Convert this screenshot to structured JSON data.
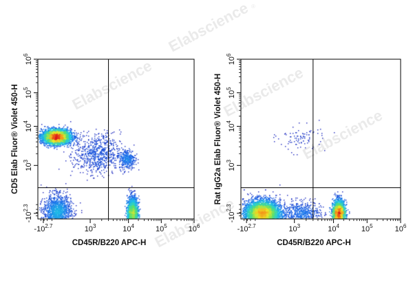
{
  "watermark": {
    "text": "Elabscience",
    "mark": "®"
  },
  "chart_data": [
    {
      "type": "scatter",
      "plot_style": "flow-cytometry pseudocolor density dot plot",
      "xlabel": "CD45R/B220 APC-H",
      "ylabel": "CD5 Elab Fluor® Violet 450-H",
      "x_scale": "biexponential",
      "y_scale": "biexponential",
      "xlim": [
        -501,
        1000000
      ],
      "ylim": [
        -200,
        1000000
      ],
      "x_ticks": [
        {
          "value": -501,
          "base": "-10",
          "exp": "2.7"
        },
        {
          "value": 1000,
          "base": "10",
          "exp": "3"
        },
        {
          "value": 10000,
          "base": "10",
          "exp": "4"
        },
        {
          "value": 100000,
          "base": "10",
          "exp": "5"
        },
        {
          "value": 1000000,
          "base": "10",
          "exp": "6"
        }
      ],
      "y_ticks": [
        {
          "value": -200,
          "base": "-10",
          "exp": "2.3"
        },
        {
          "value": 1000,
          "base": "10",
          "exp": "3"
        },
        {
          "value": 10000,
          "base": "10",
          "exp": "4"
        },
        {
          "value": 100000,
          "base": "10",
          "exp": "5"
        },
        {
          "value": 1000000,
          "base": "10",
          "exp": "6"
        }
      ],
      "quadrant_gate": {
        "x": 3000,
        "y": 550
      },
      "populations": [
        {
          "x": 200,
          "y": 5500,
          "spread_x": 0.45,
          "spread_y": 0.32,
          "weight": 0.46,
          "peak": "red"
        },
        {
          "x": 13000,
          "y": 30,
          "spread_x": 0.16,
          "spread_y": 0.75,
          "weight": 0.24,
          "peak": "red"
        },
        {
          "x": 220,
          "y": 40,
          "spread_x": 0.42,
          "spread_y": 0.8,
          "weight": 0.18,
          "peak": "cyan"
        },
        {
          "x": 1500,
          "y": 2000,
          "spread_x": 0.7,
          "spread_y": 0.9,
          "weight": 0.08,
          "peak": "blue"
        },
        {
          "x": 9000,
          "y": 1500,
          "spread_x": 0.25,
          "spread_y": 0.45,
          "weight": 0.04,
          "peak": "blue"
        }
      ]
    },
    {
      "type": "scatter",
      "plot_style": "flow-cytometry pseudocolor density dot plot",
      "xlabel": "CD45R/B220 APC-H",
      "ylabel": "Rat IgG2a Elab Fluor® Violet 450-H",
      "x_scale": "biexponential",
      "y_scale": "biexponential",
      "xlim": [
        -501,
        1000000
      ],
      "ylim": [
        -200,
        1000000
      ],
      "x_ticks": [
        {
          "value": -501,
          "base": "-10",
          "exp": "2.7"
        },
        {
          "value": 1000,
          "base": "10",
          "exp": "3"
        },
        {
          "value": 10000,
          "base": "10",
          "exp": "4"
        },
        {
          "value": 100000,
          "base": "10",
          "exp": "5"
        },
        {
          "value": 1000000,
          "base": "10",
          "exp": "6"
        }
      ],
      "y_ticks": [
        {
          "value": -200,
          "base": "-10",
          "exp": "2.3"
        },
        {
          "value": 1000,
          "base": "10",
          "exp": "3"
        },
        {
          "value": 10000,
          "base": "10",
          "exp": "4"
        },
        {
          "value": 100000,
          "base": "10",
          "exp": "5"
        },
        {
          "value": 1000000,
          "base": "10",
          "exp": "6"
        }
      ],
      "quadrant_gate": {
        "x": 3000,
        "y": 550
      },
      "populations": [
        {
          "x": 250,
          "y": 30,
          "spread_x": 0.55,
          "spread_y": 0.6,
          "weight": 0.62,
          "peak": "red"
        },
        {
          "x": 14000,
          "y": 30,
          "spread_x": 0.18,
          "spread_y": 0.6,
          "weight": 0.3,
          "peak": "red"
        },
        {
          "x": 1500,
          "y": 30,
          "spread_x": 0.55,
          "spread_y": 0.55,
          "weight": 0.07,
          "peak": "cyan"
        },
        {
          "x": 1500,
          "y": 5000,
          "spread_x": 0.7,
          "spread_y": 0.6,
          "weight": 0.01,
          "peak": "blue"
        }
      ]
    }
  ]
}
